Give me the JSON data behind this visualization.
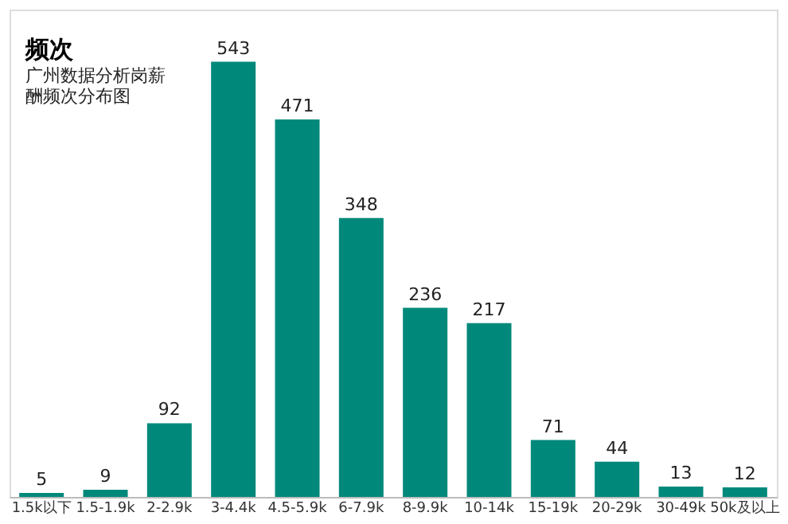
{
  "chart_data": {
    "type": "bar",
    "title": "频次",
    "subtitle": "广州数据分析岗薪酬频次分布图",
    "categories": [
      "1.5k以下",
      "1.5-1.9k",
      "2-2.9k",
      "3-4.4k",
      "4.5-5.9k",
      "6-7.9k",
      "8-9.9k",
      "10-14k",
      "15-19k",
      "20-29k",
      "30-49k",
      "50k及以上"
    ],
    "values": [
      5,
      9,
      92,
      543,
      471,
      348,
      236,
      217,
      71,
      44,
      13,
      12
    ],
    "color": "#00897b",
    "data_labels": true,
    "grid": false
  }
}
